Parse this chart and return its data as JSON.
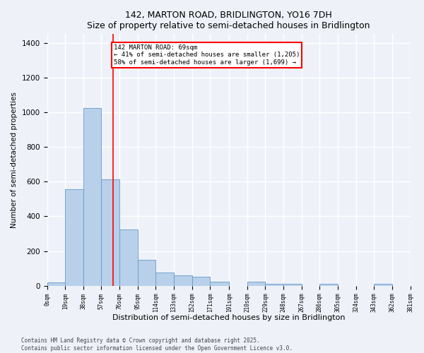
{
  "title1": "142, MARTON ROAD, BRIDLINGTON, YO16 7DH",
  "title2": "Size of property relative to semi-detached houses in Bridlington",
  "xlabel": "Distribution of semi-detached houses by size in Bridlington",
  "ylabel": "Number of semi-detached properties",
  "bar_values": [
    20,
    555,
    1025,
    615,
    325,
    148,
    75,
    60,
    50,
    25,
    0,
    25,
    12,
    12,
    0,
    10,
    0,
    0,
    10,
    0
  ],
  "bin_edges": [
    0,
    19,
    38,
    57,
    76,
    95,
    114,
    133,
    152,
    171,
    191,
    210,
    229,
    248,
    267,
    286,
    305,
    324,
    343,
    362,
    381
  ],
  "tick_labels": [
    "0sqm",
    "19sqm",
    "38sqm",
    "57sqm",
    "76sqm",
    "95sqm",
    "114sqm",
    "133sqm",
    "152sqm",
    "171sqm",
    "191sqm",
    "210sqm",
    "229sqm",
    "248sqm",
    "267sqm",
    "286sqm",
    "305sqm",
    "324sqm",
    "343sqm",
    "362sqm",
    "381sqm"
  ],
  "bar_color": "#b8d0ea",
  "bar_edgecolor": "#6699cc",
  "red_line_x": 69,
  "annotation_text": "142 MARTON ROAD: 69sqm\n← 41% of semi-detached houses are smaller (1,205)\n58% of semi-detached houses are larger (1,699) →",
  "annotation_box_color": "white",
  "annotation_box_edgecolor": "red",
  "red_line_color": "red",
  "ylim_max": 1450,
  "yticks": [
    0,
    200,
    400,
    600,
    800,
    1000,
    1200,
    1400
  ],
  "background_color": "#eef2f8",
  "grid_color": "white",
  "footer_text": "Contains HM Land Registry data © Crown copyright and database right 2025.\nContains public sector information licensed under the Open Government Licence v3.0."
}
